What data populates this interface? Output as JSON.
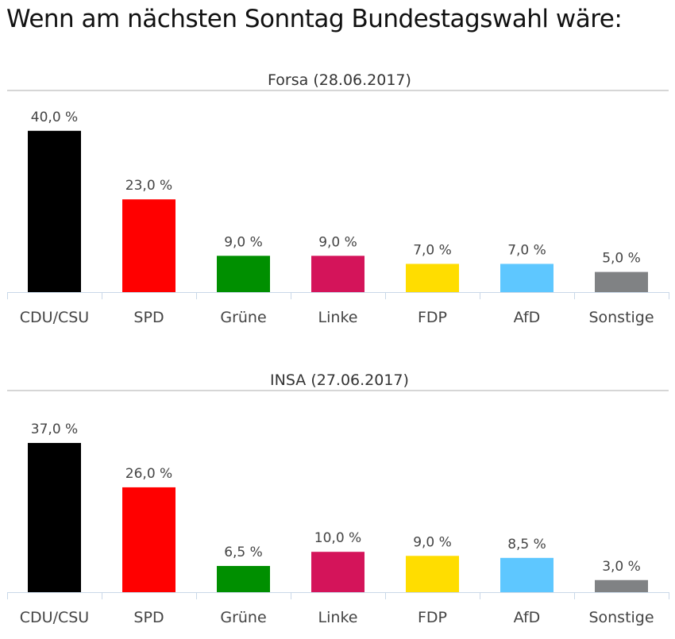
{
  "page": {
    "title": "Wenn am nächsten Sonntag Bundestagswahl wäre:"
  },
  "chart_data": [
    {
      "type": "bar",
      "title": "Forsa (28.06.2017)",
      "xlabel": "",
      "ylabel": "",
      "ylim": [
        0,
        40
      ],
      "grid": false,
      "categories": [
        "CDU/CSU",
        "SPD",
        "Grüne",
        "Linke",
        "FDP",
        "AfD",
        "Sonstige"
      ],
      "values": [
        40.0,
        23.0,
        9.0,
        9.0,
        7.0,
        7.0,
        5.0
      ],
      "value_labels": [
        "40,0 %",
        "23,0 %",
        "9,0 %",
        "9,0 %",
        "7,0 %",
        "7,0 %",
        "5,0 %"
      ],
      "colors": [
        "#000000",
        "#ff0000",
        "#008f00",
        "#d4145a",
        "#ffdd00",
        "#5ec7ff",
        "#808284"
      ]
    },
    {
      "type": "bar",
      "title": "INSA (27.06.2017)",
      "xlabel": "",
      "ylabel": "",
      "ylim": [
        0,
        40
      ],
      "grid": false,
      "categories": [
        "CDU/CSU",
        "SPD",
        "Grüne",
        "Linke",
        "FDP",
        "AfD",
        "Sonstige"
      ],
      "values": [
        37.0,
        26.0,
        6.5,
        10.0,
        9.0,
        8.5,
        3.0
      ],
      "value_labels": [
        "37,0 %",
        "26,0 %",
        "6,5 %",
        "10,0 %",
        "9,0 %",
        "8,5 %",
        "3,0 %"
      ],
      "colors": [
        "#000000",
        "#ff0000",
        "#008f00",
        "#d4145a",
        "#ffdd00",
        "#5ec7ff",
        "#808284"
      ]
    }
  ]
}
